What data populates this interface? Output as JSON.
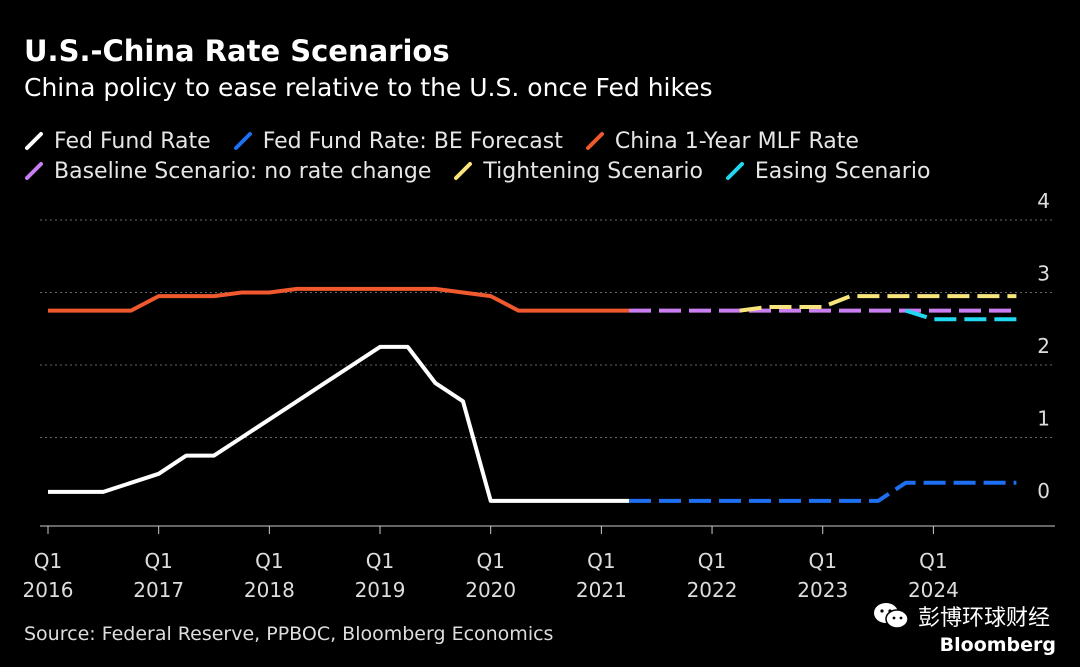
{
  "header": {
    "title": "U.S.-China Rate Scenarios",
    "subtitle": "China policy to ease relative to the U.S. once Fed hikes"
  },
  "footer": {
    "source": "Source: Federal Reserve, PPBOC, Bloomberg Economics",
    "watermark_text": "彭博环球财经",
    "brand": "Bloomberg"
  },
  "icons": {
    "watermark": "wechat-icon"
  },
  "chart_data": {
    "type": "line",
    "title": "U.S.-China Rate Scenarios",
    "subtitle": "China policy to ease relative to the U.S. once Fed hikes",
    "xlabel": "",
    "ylabel": "",
    "xlim": [
      2016.0,
      2024.9
    ],
    "ylim": [
      0,
      4
    ],
    "yticks": [
      0,
      1,
      2,
      3,
      4
    ],
    "xticks": [
      {
        "value": 2016.0,
        "q": "Q1",
        "year": "2016"
      },
      {
        "value": 2017.0,
        "q": "Q1",
        "year": "2017"
      },
      {
        "value": 2018.0,
        "q": "Q1",
        "year": "2018"
      },
      {
        "value": 2019.0,
        "q": "Q1",
        "year": "2019"
      },
      {
        "value": 2020.0,
        "q": "Q1",
        "year": "2020"
      },
      {
        "value": 2021.0,
        "q": "Q1",
        "year": "2021"
      },
      {
        "value": 2022.0,
        "q": "Q1",
        "year": "2022"
      },
      {
        "value": 2023.0,
        "q": "Q1",
        "year": "2023"
      },
      {
        "value": 2024.0,
        "q": "Q1",
        "year": "2024"
      }
    ],
    "grid": true,
    "y_axis_side": "right",
    "legend_position": "top",
    "series": [
      {
        "name": "Fed Fund Rate",
        "color": "#ffffff",
        "style": "solid",
        "points": [
          [
            2016.0,
            0.25
          ],
          [
            2016.5,
            0.25
          ],
          [
            2017.0,
            0.5
          ],
          [
            2017.25,
            0.75
          ],
          [
            2017.5,
            0.75
          ],
          [
            2017.75,
            1.0
          ],
          [
            2018.0,
            1.25
          ],
          [
            2018.25,
            1.5
          ],
          [
            2018.5,
            1.75
          ],
          [
            2018.75,
            2.0
          ],
          [
            2019.0,
            2.25
          ],
          [
            2019.25,
            2.25
          ],
          [
            2019.5,
            1.75
          ],
          [
            2019.75,
            1.5
          ],
          [
            2020.0,
            0.125
          ],
          [
            2021.25,
            0.125
          ]
        ]
      },
      {
        "name": "Fed Fund Rate: BE Forecast",
        "color": "#1f6ff2",
        "style": "dashed",
        "points": [
          [
            2021.25,
            0.125
          ],
          [
            2023.5,
            0.125
          ],
          [
            2023.75,
            0.375
          ],
          [
            2024.75,
            0.375
          ]
        ]
      },
      {
        "name": "China 1-Year MLF Rate",
        "color": "#f0582e",
        "style": "solid",
        "points": [
          [
            2016.0,
            2.75
          ],
          [
            2016.75,
            2.75
          ],
          [
            2017.0,
            2.95
          ],
          [
            2017.5,
            2.95
          ],
          [
            2017.75,
            3.0
          ],
          [
            2018.0,
            3.0
          ],
          [
            2018.25,
            3.05
          ],
          [
            2019.5,
            3.05
          ],
          [
            2019.75,
            3.0
          ],
          [
            2020.0,
            2.95
          ],
          [
            2020.25,
            2.75
          ],
          [
            2021.25,
            2.75
          ]
        ]
      },
      {
        "name": "Baseline Scenario: no rate change",
        "color": "#c97ef2",
        "style": "dashed",
        "points": [
          [
            2021.25,
            2.75
          ],
          [
            2024.75,
            2.75
          ]
        ]
      },
      {
        "name": "Tightening Scenario",
        "color": "#f8e47c",
        "style": "dashed",
        "points": [
          [
            2022.25,
            2.75
          ],
          [
            2022.5,
            2.8
          ],
          [
            2023.0,
            2.8
          ],
          [
            2023.25,
            2.95
          ],
          [
            2024.75,
            2.95
          ]
        ]
      },
      {
        "name": "Easing Scenario",
        "color": "#22d8f0",
        "style": "dashed",
        "points": [
          [
            2023.75,
            2.75
          ],
          [
            2024.0,
            2.63
          ],
          [
            2024.75,
            2.63
          ]
        ]
      }
    ]
  }
}
